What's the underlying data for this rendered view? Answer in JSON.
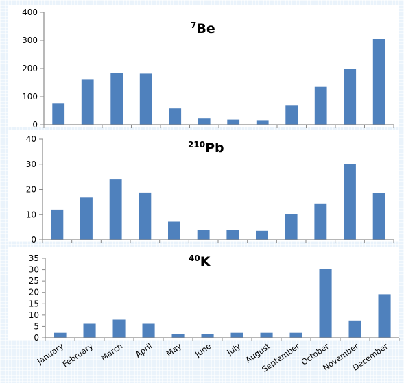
{
  "chart_data": [
    {
      "type": "bar",
      "title_sup": "7",
      "title_main": "Be",
      "categories": [
        "January",
        "February",
        "March",
        "April",
        "May",
        "June",
        "July",
        "August",
        "September",
        "October",
        "November",
        "December"
      ],
      "values": [
        75,
        160,
        185,
        182,
        58,
        24,
        18,
        16,
        70,
        135,
        198,
        305
      ],
      "ylim": [
        0,
        400
      ],
      "yticks": [
        "0",
        "100",
        "200",
        "300",
        "400"
      ],
      "bar_color": "#4f81bd",
      "xlabel": "",
      "ylabel": ""
    },
    {
      "type": "bar",
      "title_sup": "210",
      "title_main": "Pb",
      "categories": [
        "January",
        "February",
        "March",
        "April",
        "May",
        "June",
        "July",
        "August",
        "September",
        "October",
        "November",
        "December"
      ],
      "values": [
        12,
        16.8,
        24.2,
        18.8,
        7.2,
        4,
        4,
        3.6,
        10.2,
        14.2,
        30,
        18.5
      ],
      "ylim": [
        0,
        40
      ],
      "yticks": [
        "0",
        "10",
        "20",
        "30",
        "40"
      ],
      "bar_color": "#4f81bd",
      "xlabel": "",
      "ylabel": ""
    },
    {
      "type": "bar",
      "title_sup": "40",
      "title_main": "K",
      "categories": [
        "January",
        "February",
        "March",
        "April",
        "May",
        "June",
        "July",
        "August",
        "September",
        "October",
        "November",
        "December"
      ],
      "values": [
        2.2,
        6.2,
        8,
        6.2,
        1.8,
        1.8,
        2.2,
        2.2,
        2.2,
        30.2,
        7.6,
        19.2
      ],
      "ylim": [
        0,
        35
      ],
      "yticks": [
        "0",
        "5",
        "10",
        "15",
        "20",
        "25",
        "30",
        "35"
      ],
      "bar_color": "#4f81bd",
      "xlabel": "",
      "ylabel": ""
    }
  ]
}
